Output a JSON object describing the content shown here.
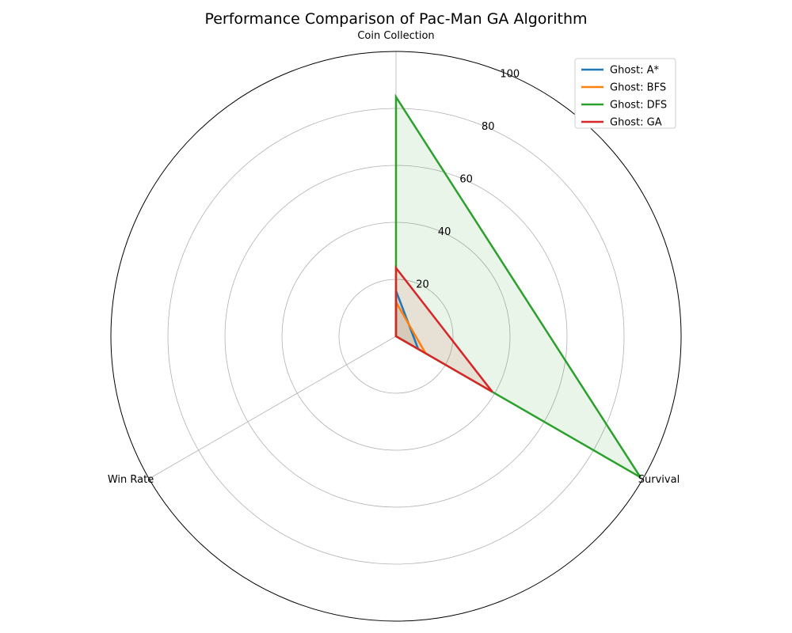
{
  "chart_data": {
    "type": "radar",
    "title": "Performance Comparison of Pac-Man GA Algorithm",
    "axes": [
      "Coin Collection",
      "Survival",
      "Win Rate"
    ],
    "rlim": [
      0,
      100
    ],
    "rticks": [
      20,
      40,
      60,
      80,
      100
    ],
    "grid": true,
    "legend_position": "top-right",
    "series": [
      {
        "name": "Ghost: A*",
        "color": "#1f77b4",
        "values": [
          16,
          9,
          0
        ]
      },
      {
        "name": "Ghost: BFS",
        "color": "#ff7f0e",
        "values": [
          12,
          12,
          0
        ]
      },
      {
        "name": "Ghost: DFS",
        "color": "#2ca02c",
        "values": [
          84,
          99,
          0
        ]
      },
      {
        "name": "Ghost: GA",
        "color": "#d62728",
        "values": [
          24,
          39,
          0
        ]
      }
    ]
  }
}
